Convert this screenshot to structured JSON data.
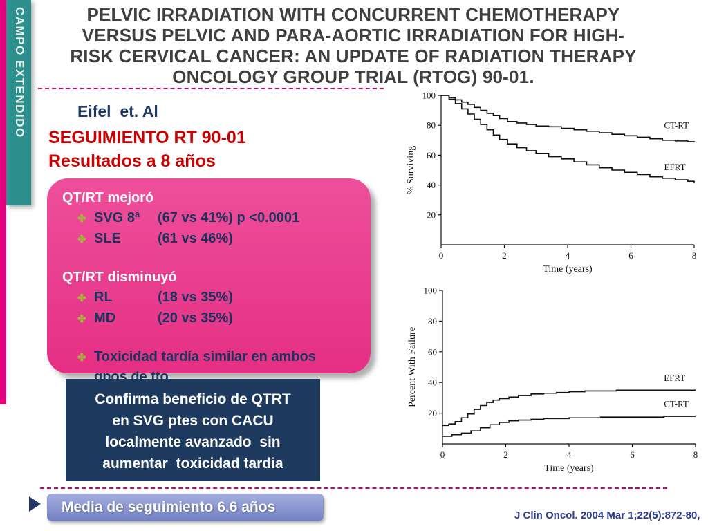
{
  "slide": {
    "side_tab_label": "CAMPO EXTENDIDO",
    "title_lines": [
      "PELVIC IRRADIATION WITH CONCURRENT CHEMOTHERAPY",
      "VERSUS PELVIC AND PARA-AORTIC IRRADIATION FOR HIGH-",
      "RISK CERVICAL CANCER: AN UPDATE OF RADIATION THERAPY",
      "ONCOLOGY GROUP TRIAL (RTOG) 90-01."
    ],
    "author": "Eifel  et. Al",
    "subtitle_line1": "SEGUIMIENTO RT 90-01",
    "subtitle_line2": "Resultados a 8 años",
    "bullet_glyph": "✤",
    "results_box": {
      "improved_header": "QT/RT mejoró",
      "improved_items": [
        {
          "label": "SVG 8ª",
          "value": "(67 vs 41%) p <0.0001"
        },
        {
          "label": "SLE",
          "value": "(61 vs 46%)"
        }
      ],
      "decreased_header": "QT/RT disminuyó",
      "decreased_items": [
        {
          "label": "RL",
          "value": "(18 vs 35%)"
        },
        {
          "label": "MD",
          "value": "(20 vs 35%)"
        }
      ],
      "note": "Toxicidad tardía similar en ambos gpos de tto"
    },
    "conclusion_lines": [
      "Confirma beneficio de QTRT",
      "en SVG ptes con CACU",
      "localmente avanzado  sin",
      "aumentar  toxicidad tardia"
    ],
    "followup_note": "Media de seguimiento 6.6 años",
    "citation": "J Clin Oncol. 2004 Mar 1;22(5):872-80,"
  },
  "colors": {
    "accent_pink": "#e5017e",
    "teal_tab": "#2e8f8f",
    "results_box_pink": "#e63a8e",
    "navy_box": "#1e3a5e",
    "red_heading": "#cc0000",
    "navy_text": "#1f3864",
    "followup_box_blue": "#7a87c6",
    "citation_blue": "#2b3b8f",
    "chart_line": "#111111"
  },
  "chart_data": [
    {
      "type": "line",
      "title": "",
      "xlabel": "Time (years)",
      "ylabel": "% Surviving",
      "xlim": [
        0,
        8
      ],
      "ylim": [
        0,
        100
      ],
      "xticks": [
        0,
        2,
        4,
        6,
        8
      ],
      "yticks": [
        20,
        40,
        60,
        80,
        100
      ],
      "step": true,
      "legend_position": "right-inline",
      "series": [
        {
          "name": "CT-RT",
          "label_x": 7.05,
          "label_y": 78,
          "x": [
            0,
            0.25,
            0.45,
            0.65,
            0.85,
            1.05,
            1.25,
            1.45,
            1.65,
            1.85,
            2.1,
            2.4,
            2.7,
            3.0,
            3.4,
            3.8,
            4.2,
            4.6,
            5.0,
            5.4,
            5.8,
            6.2,
            6.6,
            7.0,
            7.4,
            7.8,
            8.0
          ],
          "y": [
            100,
            98.5,
            97,
            95.5,
            94,
            92,
            90,
            88,
            86.5,
            84.5,
            82.5,
            81.5,
            80.5,
            79.5,
            79,
            78,
            77,
            76,
            75,
            74,
            73,
            72,
            71,
            70,
            69.5,
            69,
            68.5
          ]
        },
        {
          "name": "EFRT",
          "label_x": 7.05,
          "label_y": 50,
          "x": [
            0,
            0.25,
            0.45,
            0.65,
            0.85,
            1.05,
            1.25,
            1.45,
            1.65,
            1.85,
            2.1,
            2.4,
            2.7,
            3.0,
            3.4,
            3.8,
            4.2,
            4.6,
            5.0,
            5.4,
            5.8,
            6.2,
            6.6,
            7.0,
            7.4,
            7.8,
            8.0
          ],
          "y": [
            100,
            97.5,
            94.5,
            91,
            87.5,
            84,
            80.5,
            77,
            73.5,
            70.5,
            67.5,
            65,
            63,
            61,
            59,
            57.5,
            55.5,
            53.5,
            51.5,
            50,
            48.5,
            47,
            45.5,
            44.5,
            43.5,
            42.5,
            41.5
          ]
        }
      ]
    },
    {
      "type": "line",
      "title": "",
      "xlabel": "Time (years)",
      "ylabel": "Percent With Failure",
      "xlim": [
        0,
        8
      ],
      "ylim": [
        0,
        100
      ],
      "xticks": [
        0,
        2,
        4,
        6,
        8
      ],
      "yticks": [
        20,
        40,
        60,
        80,
        100
      ],
      "step": true,
      "legend_position": "right-inline",
      "series": [
        {
          "name": "EFRT",
          "label_x": 7.0,
          "label_y": 41,
          "x": [
            0,
            0.2,
            0.4,
            0.6,
            0.8,
            1.0,
            1.2,
            1.4,
            1.6,
            1.8,
            2.1,
            2.4,
            2.8,
            3.2,
            3.6,
            4.0,
            4.5,
            5.0,
            5.5,
            6.5,
            7.5,
            8.0
          ],
          "y": [
            12,
            13,
            14.5,
            17,
            19.5,
            22.5,
            25,
            27,
            28.5,
            29.5,
            30.5,
            31.5,
            32.5,
            33,
            33.5,
            34,
            34.5,
            34.5,
            35,
            35,
            35,
            35
          ]
        },
        {
          "name": "CT-RT",
          "label_x": 7.0,
          "label_y": 24,
          "x": [
            0,
            0.3,
            0.6,
            0.9,
            1.2,
            1.5,
            1.8,
            2.1,
            2.4,
            2.8,
            3.2,
            3.6,
            4.0,
            4.5,
            5.0,
            6.0,
            7.0,
            8.0
          ],
          "y": [
            5,
            6,
            7,
            8.5,
            10.5,
            12.5,
            14,
            15,
            15.5,
            16,
            16.5,
            16.5,
            17,
            17,
            17.5,
            17.5,
            18,
            18
          ]
        }
      ]
    }
  ]
}
